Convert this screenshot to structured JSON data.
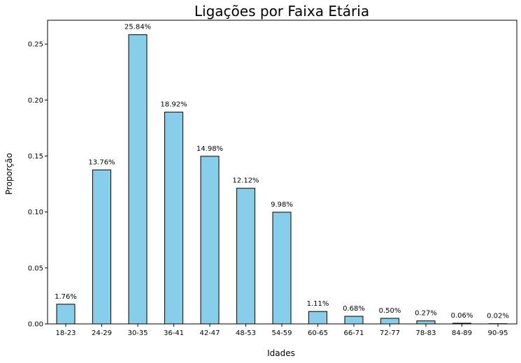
{
  "chart_data": {
    "type": "bar",
    "title": "Ligações por Faixa Etária",
    "xlabel": "Idades",
    "ylabel": "Proporção",
    "categories": [
      "18-23",
      "24-29",
      "30-35",
      "36-41",
      "42-47",
      "48-53",
      "54-59",
      "60-65",
      "66-71",
      "72-77",
      "78-83",
      "84-89",
      "90-95"
    ],
    "values": [
      0.0176,
      0.1376,
      0.2584,
      0.1892,
      0.1498,
      0.1212,
      0.0998,
      0.0111,
      0.0068,
      0.005,
      0.0027,
      0.0006,
      0.0002
    ],
    "data_labels": [
      "1.76%",
      "13.76%",
      "25.84%",
      "18.92%",
      "14.98%",
      "12.12%",
      "9.98%",
      "1.11%",
      "0.68%",
      "0.50%",
      "0.27%",
      "0.06%",
      "0.02%"
    ],
    "yticks": [
      0.0,
      0.05,
      0.1,
      0.15,
      0.2,
      0.25
    ],
    "ytick_labels": [
      "0.00",
      "0.05",
      "0.10",
      "0.15",
      "0.20",
      "0.25"
    ],
    "ylim": [
      0,
      0.2713
    ],
    "grid": false,
    "bar_color": "#87ceeb",
    "edge_color": "#000000"
  }
}
